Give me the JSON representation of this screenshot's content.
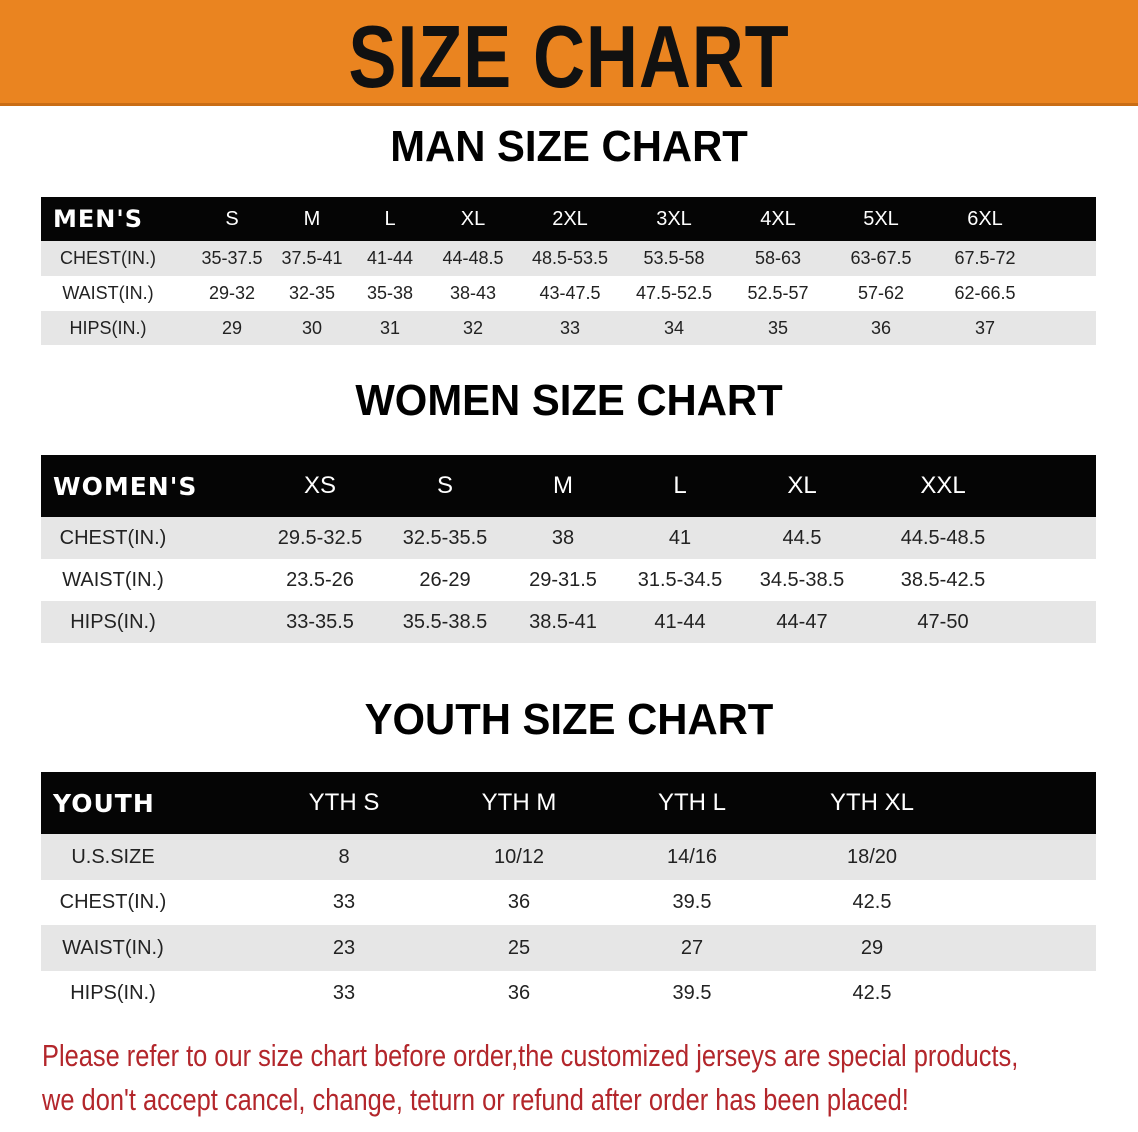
{
  "banner": {
    "title": "SIZE CHART",
    "color": "#ea8420"
  },
  "men": {
    "title": "MAN SIZE CHART",
    "header": [
      "MEN'S",
      "S",
      "M",
      "L",
      "XL",
      "2XL",
      "3XL",
      "4XL",
      "5XL",
      "6XL"
    ],
    "rows": [
      [
        "CHEST(IN.)",
        "35-37.5",
        "37.5-41",
        "41-44",
        "44-48.5",
        "48.5-53.5",
        "53.5-58",
        "58-63",
        "63-67.5",
        "67.5-72"
      ],
      [
        "WAIST(IN.)",
        "29-32",
        "32-35",
        "35-38",
        "38-43",
        "43-47.5",
        "47.5-52.5",
        "52.5-57",
        "57-62",
        "62-66.5"
      ],
      [
        "HIPS(IN.)",
        "29",
        "30",
        "31",
        "32",
        "33",
        "34",
        "35",
        "36",
        "37"
      ]
    ]
  },
  "women": {
    "title": "WOMEN SIZE CHART",
    "header": [
      "WOMEN'S",
      "XS",
      "S",
      "M",
      "L",
      "XL",
      "XXL"
    ],
    "rows": [
      [
        "CHEST(IN.)",
        "29.5-32.5",
        "32.5-35.5",
        "38",
        "41",
        "44.5",
        "44.5-48.5"
      ],
      [
        "WAIST(IN.)",
        "23.5-26",
        "26-29",
        "29-31.5",
        "31.5-34.5",
        "34.5-38.5",
        "38.5-42.5"
      ],
      [
        "HIPS(IN.)",
        "33-35.5",
        "35.5-38.5",
        "38.5-41",
        "41-44",
        "44-47",
        "47-50"
      ]
    ]
  },
  "youth": {
    "title": "YOUTH SIZE CHART",
    "header": [
      "YOUTH",
      "YTH S",
      "YTH M",
      "YTH L",
      "YTH XL"
    ],
    "rows": [
      [
        "U.S.SIZE",
        "8",
        "10/12",
        "14/16",
        "18/20"
      ],
      [
        "CHEST(IN.)",
        "33",
        "36",
        "39.5",
        "42.5"
      ],
      [
        "WAIST(IN.)",
        "23",
        "25",
        "27",
        "29"
      ],
      [
        "HIPS(IN.)",
        "33",
        "36",
        "39.5",
        "42.5"
      ]
    ]
  },
  "footer": {
    "line1": "Please refer to our size chart before order,the customized jerseys are special products,",
    "line2": "we don't accept cancel, change, teturn or refund after order has been placed!",
    "color": "#b3262b"
  }
}
